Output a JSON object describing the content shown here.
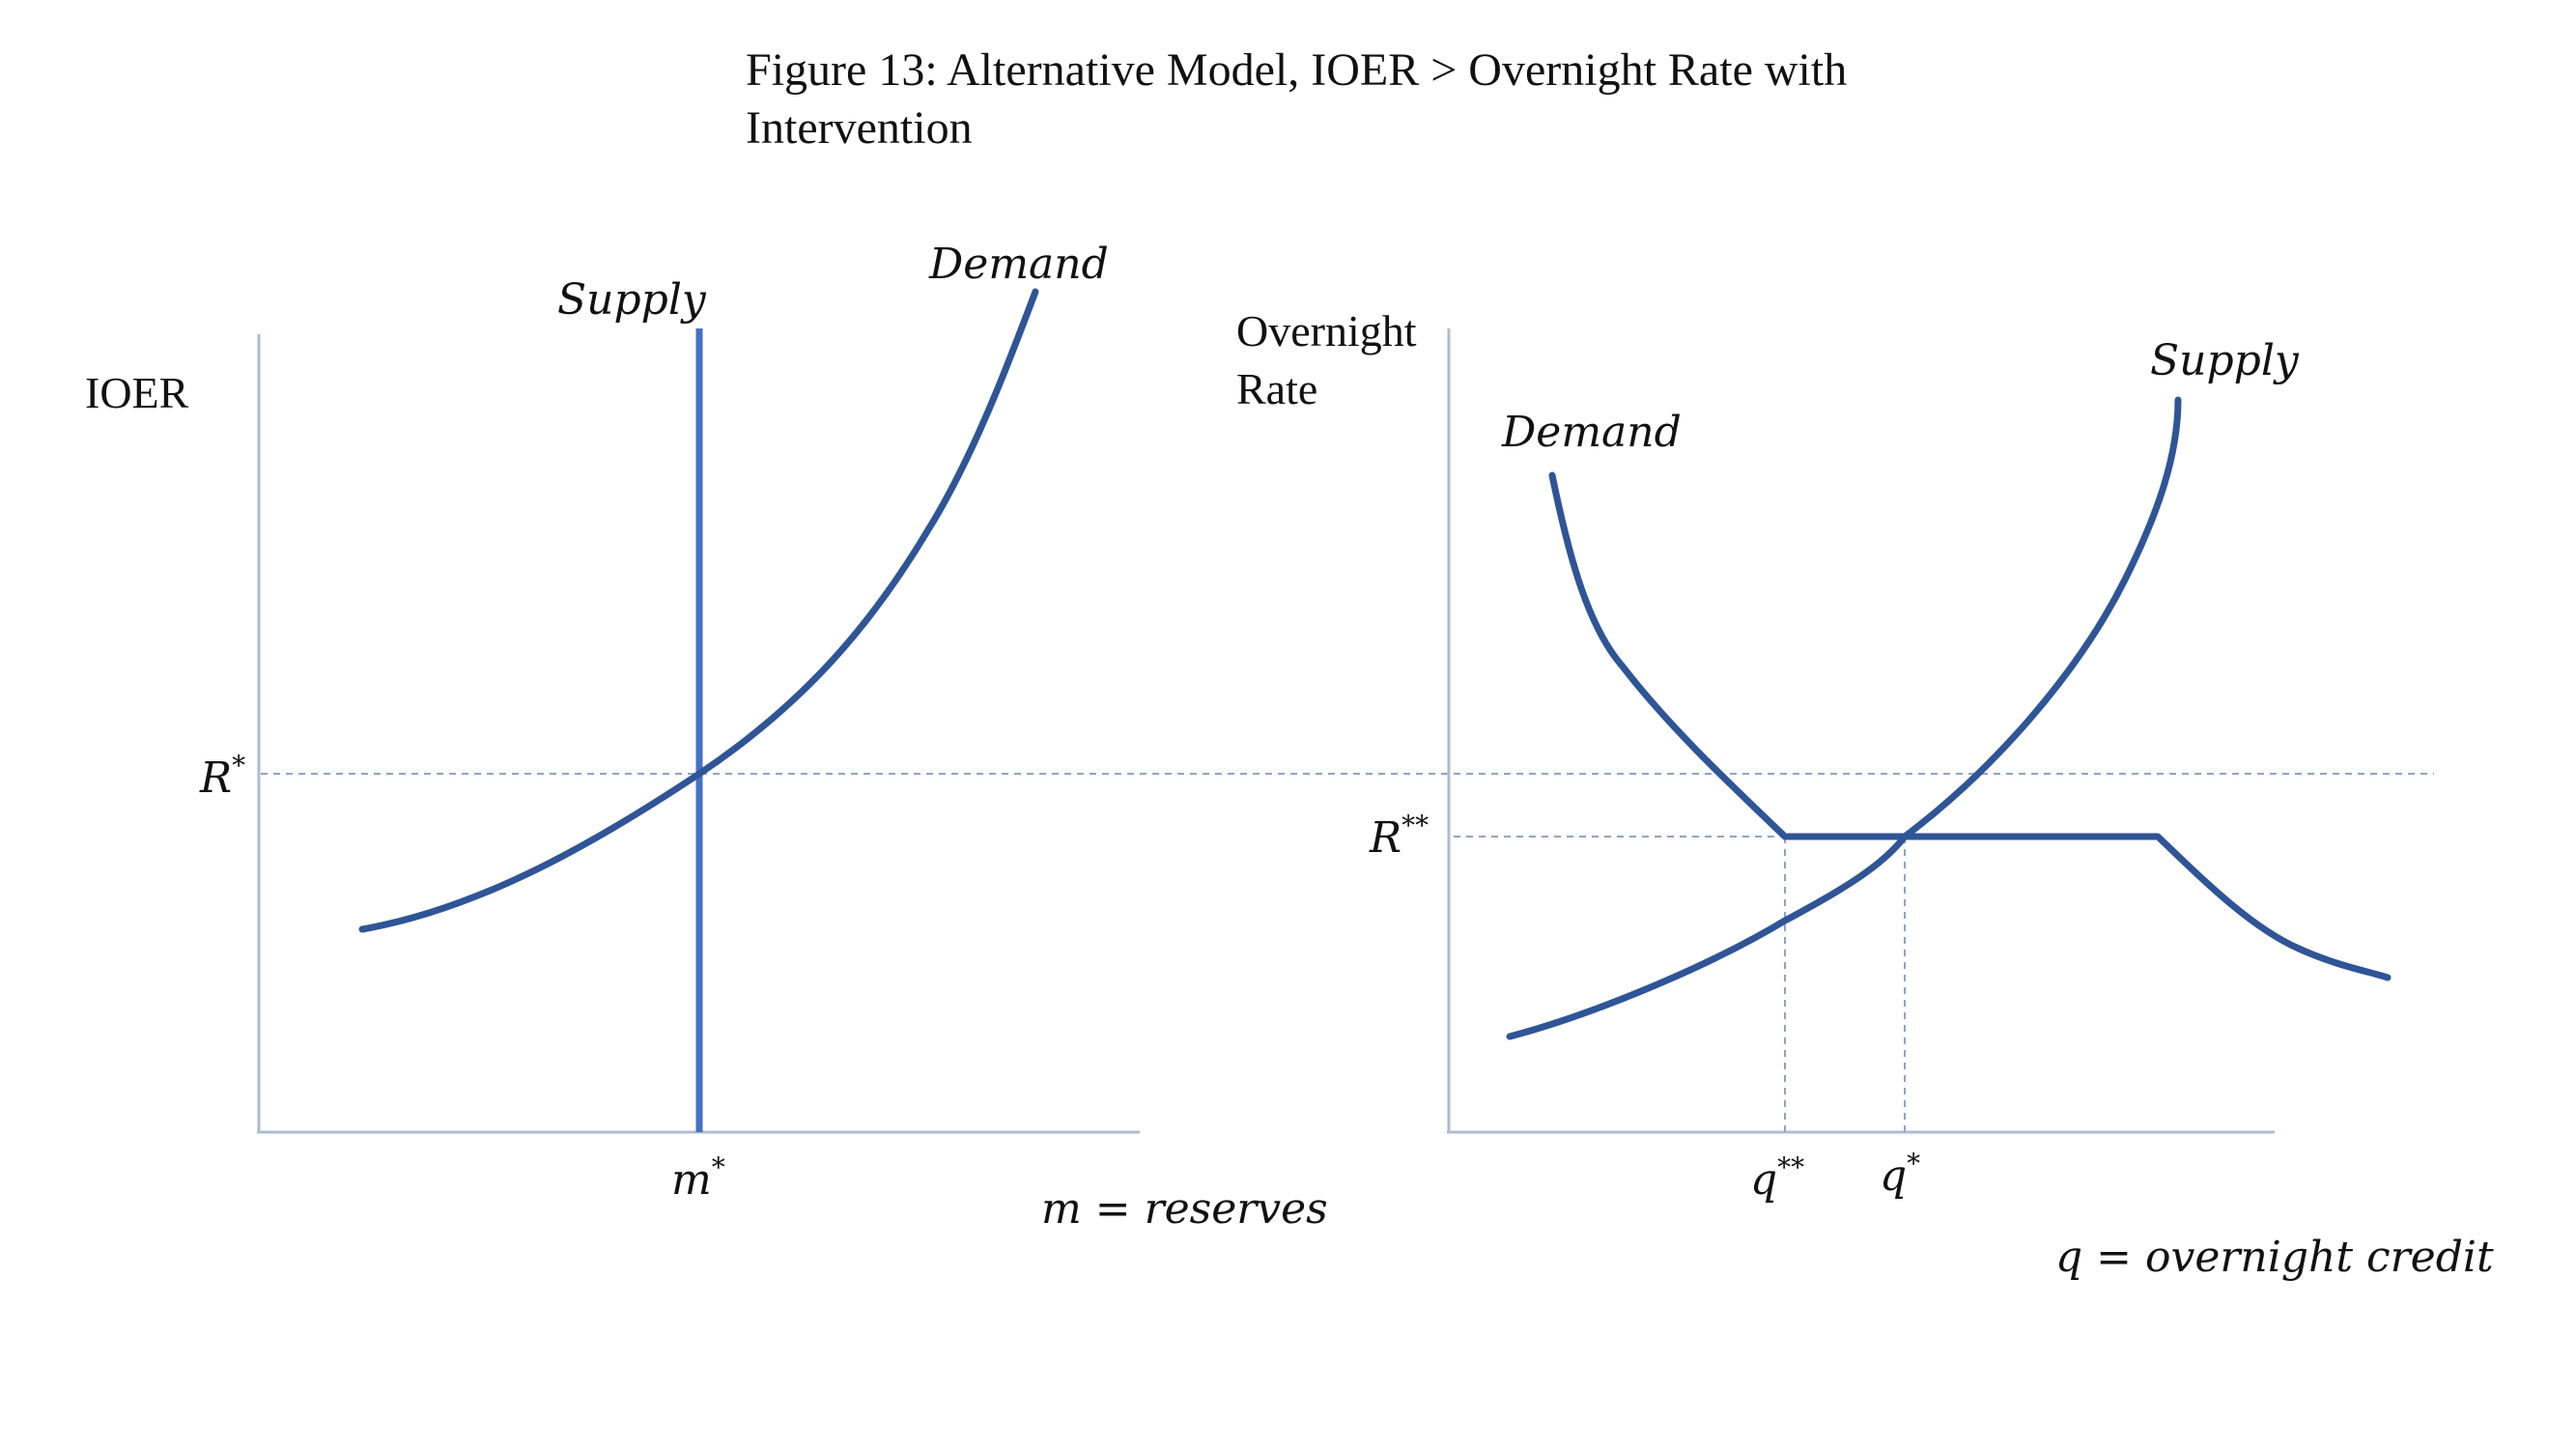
{
  "figure": {
    "title_line1": "Figure 13: Alternative Model, IOER > Overnight Rate with",
    "title_line2": "Intervention"
  },
  "left_panel": {
    "y_axis_label": "IOER",
    "supply_label": "Supply",
    "demand_label": "Demand",
    "rate_marker": "R",
    "rate_marker_sup": "*",
    "quantity_marker": "m",
    "quantity_marker_sup": "*",
    "x_axis_caption": "m = reserves"
  },
  "right_panel": {
    "y_axis_label_line1": "Overnight",
    "y_axis_label_line2": "Rate",
    "supply_label": "Supply",
    "demand_label": "Demand",
    "rate_marker": "R",
    "rate_marker_sup": "**",
    "quantity_marker_1": "q",
    "quantity_marker_1_sup": "**",
    "quantity_marker_2": "q",
    "quantity_marker_2_sup": "*",
    "x_axis_caption": "q = overnight credit"
  },
  "colors": {
    "curve": "#2f5597",
    "vertical_supply": "#4472c4",
    "axis": "#aebbd3",
    "guide": "#8ea4c8"
  }
}
